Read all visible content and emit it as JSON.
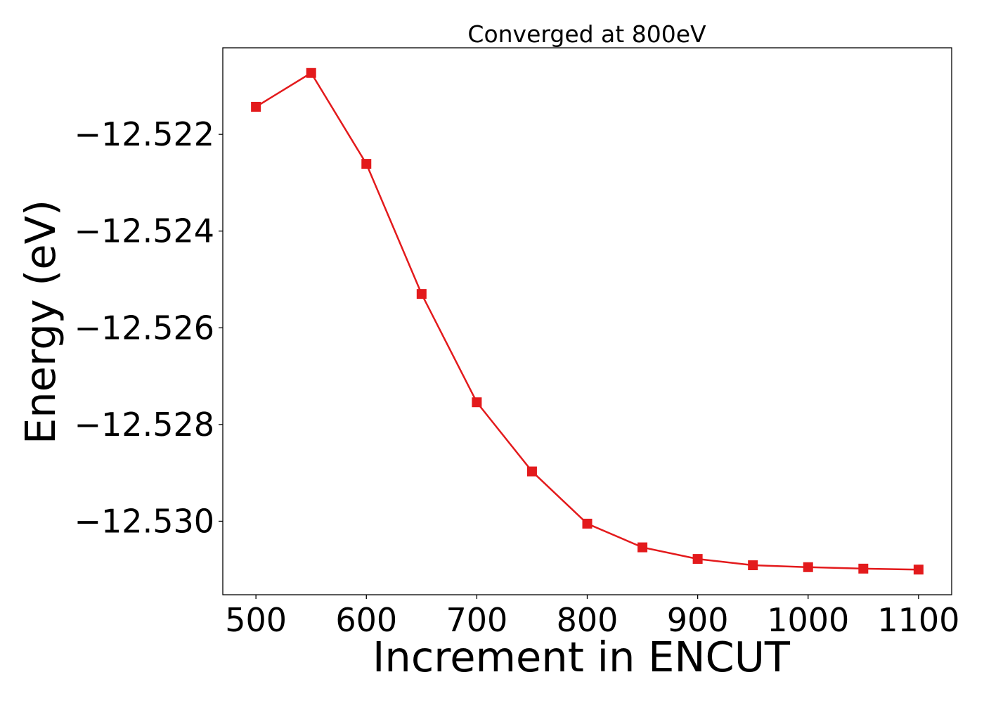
{
  "chart_data": {
    "type": "line",
    "title": "Converged at 800eV",
    "xlabel": "Increment in ENCUT",
    "ylabel": "Energy (eV)",
    "x": [
      500,
      550,
      600,
      650,
      700,
      750,
      800,
      850,
      900,
      950,
      1000,
      1050,
      1100
    ],
    "series": [
      {
        "values": [
          -12.52143,
          -12.52073,
          -12.52261,
          -12.5253,
          -12.52754,
          -12.52897,
          -12.53005,
          -12.53054,
          -12.53078,
          -12.53091,
          -12.53095,
          -12.53098,
          -12.531
        ],
        "color": "#e31a1c",
        "marker": "square"
      }
    ],
    "xlim": [
      470,
      1130
    ],
    "ylim": [
      -12.53152,
      -12.52021
    ],
    "xticks": [
      500,
      600,
      700,
      800,
      900,
      1000,
      1100
    ],
    "xtick_labels": [
      "500",
      "600",
      "700",
      "800",
      "900",
      "1000",
      "1100"
    ],
    "yticks": [
      -12.522,
      -12.524,
      -12.526,
      -12.528,
      -12.53
    ],
    "ytick_labels": [
      "−12.522",
      "−12.524",
      "−12.526",
      "−12.528",
      "−12.530"
    ],
    "grid": false,
    "legend": false
  }
}
